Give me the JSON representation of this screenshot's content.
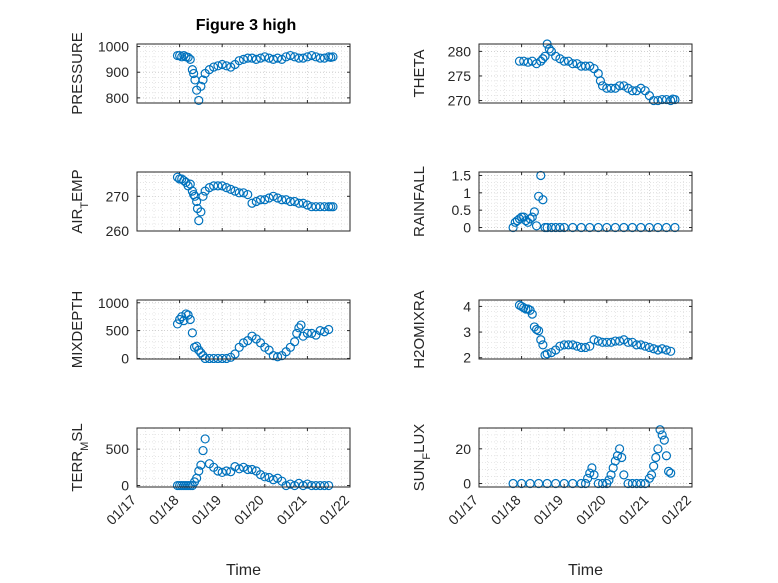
{
  "figure": {
    "title": "Figure 3 high",
    "marker_color": "#0072BD"
  },
  "chart_data": [
    {
      "type": "scatter",
      "ylabel": "PRESSURE",
      "xlabel": "",
      "xlim": [
        "01/17",
        "01/22"
      ],
      "ylim": [
        780,
        1010
      ],
      "yticks": [
        "800",
        "900",
        "1000"
      ],
      "xticks": [],
      "grid": true,
      "minor_grid": true,
      "series": [
        {
          "x": [
            0.95,
            1.0,
            1.05,
            1.1,
            1.15,
            1.2,
            1.25,
            1.3,
            1.33,
            1.36,
            1.4,
            1.45,
            1.5,
            1.55,
            1.6,
            1.7,
            1.8,
            1.9,
            2.0,
            2.1,
            2.2,
            2.3,
            2.4,
            2.5,
            2.6,
            2.7,
            2.8,
            2.9,
            3.0,
            3.1,
            3.2,
            3.3,
            3.4,
            3.5,
            3.6,
            3.7,
            3.8,
            3.9,
            4.0,
            4.1,
            4.2,
            4.3,
            4.4,
            4.5,
            4.55,
            4.6
          ],
          "y": [
            965,
            965,
            960,
            965,
            960,
            958,
            950,
            910,
            895,
            870,
            830,
            790,
            845,
            870,
            895,
            910,
            920,
            925,
            930,
            925,
            920,
            930,
            945,
            950,
            955,
            955,
            950,
            955,
            960,
            955,
            950,
            955,
            950,
            960,
            965,
            960,
            955,
            955,
            960,
            965,
            960,
            955,
            955,
            960,
            958,
            960
          ]
        }
      ]
    },
    {
      "type": "scatter",
      "ylabel": "THETA",
      "xlabel": "",
      "xlim": [
        "01/17",
        "01/22"
      ],
      "ylim": [
        269.5,
        281.5
      ],
      "yticks": [
        "270",
        "275",
        "280"
      ],
      "xticks": [],
      "grid": true,
      "minor_grid": true,
      "series": [
        {
          "x": [
            0.95,
            1.05,
            1.15,
            1.25,
            1.35,
            1.45,
            1.5,
            1.55,
            1.6,
            1.65,
            1.7,
            1.8,
            1.9,
            2.0,
            2.1,
            2.2,
            2.3,
            2.4,
            2.5,
            2.6,
            2.7,
            2.8,
            2.85,
            2.9,
            3.0,
            3.1,
            3.2,
            3.3,
            3.4,
            3.5,
            3.6,
            3.7,
            3.8,
            3.9,
            4.0,
            4.1,
            4.2,
            4.3,
            4.4,
            4.5,
            4.55,
            4.6
          ],
          "y": [
            278,
            278,
            277.8,
            278,
            277.5,
            278,
            278.5,
            279,
            281.5,
            280.5,
            280,
            279,
            278.5,
            278,
            278,
            277.5,
            277.5,
            277,
            277,
            277,
            276.5,
            275.5,
            274,
            273,
            272.5,
            272.5,
            272.5,
            273,
            273,
            272.5,
            272,
            272,
            272.5,
            272,
            271,
            270,
            270,
            270.2,
            270.2,
            270,
            270.3,
            270.2
          ]
        }
      ]
    },
    {
      "type": "scatter",
      "ylabel": "AIR_TEMP",
      "xlabel": "",
      "xlim": [
        "01/17",
        "01/22"
      ],
      "ylim": [
        260,
        277
      ],
      "yticks": [
        "260",
        "270"
      ],
      "xticks": [],
      "grid": true,
      "minor_grid": true,
      "series": [
        {
          "x": [
            0.95,
            1.0,
            1.05,
            1.1,
            1.15,
            1.2,
            1.25,
            1.3,
            1.33,
            1.36,
            1.4,
            1.42,
            1.45,
            1.5,
            1.55,
            1.6,
            1.7,
            1.8,
            1.9,
            2.0,
            2.1,
            2.2,
            2.3,
            2.4,
            2.5,
            2.6,
            2.7,
            2.8,
            2.9,
            3.0,
            3.1,
            3.2,
            3.3,
            3.4,
            3.5,
            3.6,
            3.7,
            3.8,
            3.9,
            4.0,
            4.1,
            4.2,
            4.3,
            4.4,
            4.5,
            4.55,
            4.6
          ],
          "y": [
            275.5,
            275,
            275,
            274.5,
            274,
            273,
            273.5,
            271.5,
            270.5,
            270,
            268.5,
            266.5,
            263,
            265.5,
            270,
            271.5,
            272.5,
            273,
            273,
            273,
            272.5,
            272,
            271.5,
            271,
            271,
            270.5,
            268,
            268.5,
            269,
            269,
            269.5,
            270,
            269.5,
            269,
            269,
            268.5,
            268.5,
            268,
            268,
            267.5,
            267,
            267,
            267,
            267,
            267,
            267,
            267
          ]
        }
      ]
    },
    {
      "type": "scatter",
      "ylabel": "RAINFALL",
      "xlabel": "",
      "xlim": [
        "01/17",
        "01/22"
      ],
      "ylim": [
        -0.1,
        1.6
      ],
      "yticks": [
        "0",
        "0.5",
        "1",
        "1.5"
      ],
      "xticks": [],
      "grid": true,
      "minor_grid": true,
      "series": [
        {
          "x": [
            0.8,
            0.85,
            0.9,
            0.95,
            1.0,
            1.05,
            1.1,
            1.15,
            1.2,
            1.25,
            1.3,
            1.35,
            1.4,
            1.45,
            1.5,
            1.55,
            1.6,
            1.7,
            1.8,
            1.9,
            2.0,
            2.2,
            2.4,
            2.6,
            2.8,
            3.0,
            3.2,
            3.4,
            3.6,
            3.8,
            4.0,
            4.2,
            4.4,
            4.6
          ],
          "y": [
            0,
            0.15,
            0.2,
            0.25,
            0.3,
            0.3,
            0.2,
            0.15,
            0.25,
            0.3,
            0.45,
            0.05,
            0.9,
            1.5,
            0.8,
            0,
            0,
            0,
            0,
            0,
            0,
            0,
            0,
            0,
            0,
            0,
            0,
            0,
            0,
            0,
            0,
            0,
            0,
            0
          ]
        }
      ]
    },
    {
      "type": "scatter",
      "ylabel": "MIXDEPTH",
      "xlabel": "",
      "xlim": [
        "01/17",
        "01/22"
      ],
      "ylim": [
        -10,
        1050
      ],
      "yticks": [
        "0",
        "500",
        "1000"
      ],
      "xticks": [],
      "grid": true,
      "minor_grid": true,
      "series": [
        {
          "x": [
            0.95,
            1.0,
            1.05,
            1.1,
            1.15,
            1.2,
            1.25,
            1.3,
            1.35,
            1.4,
            1.45,
            1.5,
            1.55,
            1.6,
            1.7,
            1.8,
            1.9,
            2.0,
            2.1,
            2.2,
            2.3,
            2.4,
            2.5,
            2.6,
            2.7,
            2.8,
            2.9,
            3.0,
            3.1,
            3.2,
            3.3,
            3.4,
            3.5,
            3.6,
            3.7,
            3.75,
            3.8,
            3.85,
            3.9,
            4.0,
            4.1,
            4.2,
            4.3,
            4.4,
            4.5
          ],
          "y": [
            620,
            700,
            750,
            680,
            800,
            780,
            700,
            460,
            200,
            220,
            150,
            100,
            50,
            0,
            0,
            0,
            0,
            0,
            0,
            20,
            80,
            200,
            280,
            320,
            400,
            350,
            280,
            200,
            150,
            50,
            30,
            50,
            120,
            200,
            300,
            450,
            550,
            600,
            400,
            450,
            450,
            420,
            500,
            480,
            520
          ]
        }
      ]
    },
    {
      "type": "scatter",
      "ylabel": "H2OMIXRA",
      "xlabel": "",
      "xlim": [
        "01/17",
        "01/22"
      ],
      "ylim": [
        1.95,
        4.25
      ],
      "yticks": [
        "2",
        "3",
        "4"
      ],
      "xticks": [],
      "grid": true,
      "minor_grid": true,
      "series": [
        {
          "x": [
            0.95,
            1.0,
            1.05,
            1.1,
            1.15,
            1.2,
            1.25,
            1.3,
            1.35,
            1.4,
            1.45,
            1.5,
            1.55,
            1.6,
            1.7,
            1.8,
            1.9,
            2.0,
            2.1,
            2.2,
            2.3,
            2.4,
            2.5,
            2.6,
            2.7,
            2.8,
            2.9,
            3.0,
            3.1,
            3.2,
            3.3,
            3.4,
            3.5,
            3.6,
            3.7,
            3.8,
            3.9,
            4.0,
            4.1,
            4.2,
            4.3,
            4.4,
            4.5
          ],
          "y": [
            4.05,
            4.0,
            3.95,
            3.9,
            3.9,
            3.85,
            3.7,
            3.2,
            3.1,
            3.05,
            2.7,
            2.5,
            2.1,
            2.15,
            2.2,
            2.3,
            2.45,
            2.5,
            2.5,
            2.5,
            2.45,
            2.4,
            2.4,
            2.45,
            2.7,
            2.65,
            2.6,
            2.6,
            2.6,
            2.65,
            2.65,
            2.7,
            2.6,
            2.6,
            2.5,
            2.5,
            2.45,
            2.4,
            2.35,
            2.3,
            2.35,
            2.3,
            2.25
          ]
        }
      ]
    },
    {
      "type": "scatter",
      "ylabel": "TERR_MSL",
      "xlabel": "Time",
      "xlim": [
        "01/17",
        "01/22"
      ],
      "ylim": [
        -20,
        790
      ],
      "yticks": [
        "0",
        "500"
      ],
      "xticks": [
        "01/17",
        "01/18",
        "01/19",
        "01/20",
        "01/21",
        "01/22"
      ],
      "grid": true,
      "minor_grid": true,
      "series": [
        {
          "x": [
            0.95,
            1.0,
            1.05,
            1.1,
            1.15,
            1.2,
            1.25,
            1.3,
            1.35,
            1.4,
            1.45,
            1.5,
            1.55,
            1.6,
            1.7,
            1.8,
            1.9,
            2.0,
            2.1,
            2.2,
            2.3,
            2.4,
            2.5,
            2.6,
            2.7,
            2.8,
            2.9,
            3.0,
            3.1,
            3.2,
            3.3,
            3.4,
            3.5,
            3.6,
            3.7,
            3.8,
            3.9,
            4.0,
            4.1,
            4.2,
            4.3,
            4.4,
            4.5
          ],
          "y": [
            0,
            0,
            0,
            0,
            0,
            0,
            0,
            0,
            50,
            100,
            200,
            280,
            480,
            640,
            300,
            250,
            200,
            180,
            200,
            190,
            260,
            230,
            250,
            220,
            220,
            200,
            150,
            120,
            110,
            80,
            100,
            60,
            0,
            20,
            0,
            30,
            0,
            20,
            0,
            0,
            0,
            0,
            0
          ]
        }
      ]
    },
    {
      "type": "scatter",
      "ylabel": "SUN_FLUX",
      "xlabel": "Time",
      "xlim": [
        "01/17",
        "01/22"
      ],
      "ylim": [
        -2,
        32
      ],
      "yticks": [
        "0",
        "20"
      ],
      "xticks": [
        "01/17",
        "01/18",
        "01/19",
        "01/20",
        "01/21",
        "01/22"
      ],
      "grid": true,
      "minor_grid": true,
      "series": [
        {
          "x": [
            0.8,
            1.0,
            1.2,
            1.4,
            1.6,
            1.8,
            2.0,
            2.2,
            2.4,
            2.5,
            2.55,
            2.6,
            2.65,
            2.7,
            2.8,
            2.9,
            3.0,
            3.05,
            3.1,
            3.15,
            3.2,
            3.25,
            3.3,
            3.35,
            3.4,
            3.5,
            3.6,
            3.7,
            3.8,
            3.9,
            4.0,
            4.05,
            4.1,
            4.15,
            4.2,
            4.25,
            4.3,
            4.35,
            4.4,
            4.45,
            4.5
          ],
          "y": [
            0,
            0,
            0,
            0,
            0,
            0,
            0,
            0,
            0,
            0,
            3,
            6,
            9,
            5,
            0,
            0,
            0,
            2,
            5,
            9,
            13,
            16,
            20,
            15,
            5,
            0,
            0,
            0,
            0,
            0,
            3,
            5,
            10,
            15,
            20,
            31,
            28,
            25,
            16,
            7,
            6
          ]
        }
      ]
    }
  ]
}
